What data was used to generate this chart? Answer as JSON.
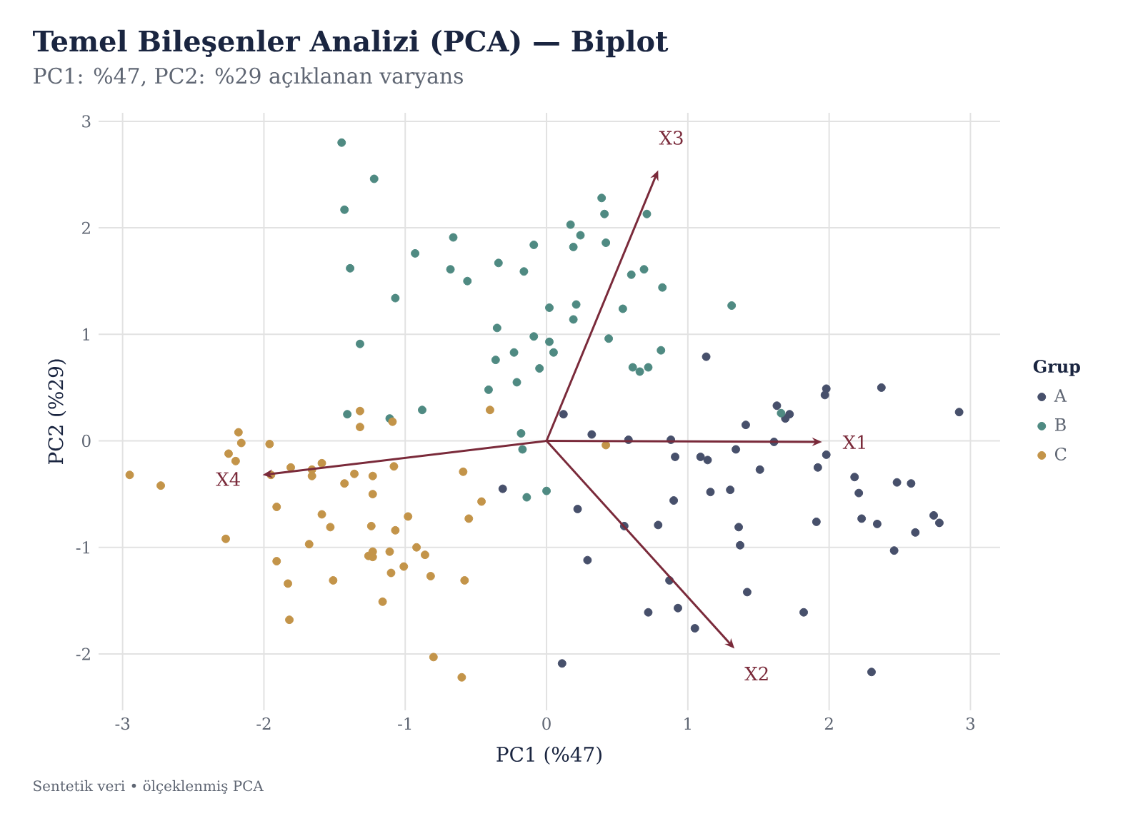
{
  "chart_data": {
    "type": "scatter",
    "title": "Temel Bileşenler Analizi (PCA) — Biplot",
    "subtitle": "PC1: %47, PC2: %29 açıklanan varyans",
    "xlabel": "PC1 (%47)",
    "ylabel": "PC2 (%29)",
    "legend_title": "Grup",
    "legend": "right",
    "grid": true,
    "xlim": [
      -3.17,
      3.21
    ],
    "ylim": [
      -2.53,
      3.08
    ],
    "xticks": [
      -3,
      -2,
      -1,
      0,
      1,
      2,
      3
    ],
    "yticks": [
      -2,
      -1,
      0,
      1,
      2,
      3
    ],
    "annotations": [
      "Sentetik veri • ölçeklenmiş PCA",
      "X1",
      "X2",
      "X3",
      "X4"
    ],
    "series": [
      {
        "name": "A",
        "color": "#47506b",
        "x": [
          2.92,
          2.37,
          1.98,
          1.97,
          1.13,
          1.63,
          1.72,
          1.69,
          1.41,
          0.12,
          0.32,
          0.58,
          0.88,
          1.61,
          1.98,
          0.91,
          1.09,
          1.14,
          1.34,
          1.51,
          1.92,
          2.18,
          2.21,
          2.48,
          2.58,
          1.16,
          1.3,
          0.9,
          -0.31,
          0.22,
          1.91,
          2.23,
          2.34,
          2.74,
          2.78,
          2.61,
          2.46,
          0.55,
          0.79,
          1.36,
          1.37,
          0.29,
          0.87,
          1.42,
          0.93,
          0.72,
          1.82,
          1.05,
          0.11,
          2.3
        ],
        "values": [
          0.27,
          0.5,
          0.49,
          0.43,
          0.79,
          0.33,
          0.25,
          0.21,
          0.15,
          0.25,
          0.06,
          0.01,
          0.01,
          -0.01,
          -0.13,
          -0.15,
          -0.15,
          -0.18,
          -0.08,
          -0.27,
          -0.25,
          -0.34,
          -0.49,
          -0.39,
          -0.4,
          -0.48,
          -0.46,
          -0.56,
          -0.45,
          -0.64,
          -0.76,
          -0.73,
          -0.78,
          -0.7,
          -0.77,
          -0.86,
          -1.03,
          -0.8,
          -0.79,
          -0.81,
          -0.98,
          -1.12,
          -1.31,
          -1.42,
          -1.57,
          -1.61,
          -1.61,
          -1.76,
          -2.09,
          -2.17
        ]
      },
      {
        "name": "B",
        "color": "#4f8a82",
        "x": [
          -1.45,
          -1.22,
          -1.43,
          0.39,
          0.41,
          0.71,
          0.17,
          0.24,
          -0.66,
          -0.09,
          0.19,
          0.42,
          -0.93,
          -0.34,
          -1.39,
          -0.68,
          -0.16,
          -0.56,
          0.6,
          0.69,
          0.82,
          -1.07,
          0.02,
          0.21,
          0.54,
          1.31,
          0.19,
          -0.35,
          -0.09,
          0.02,
          0.44,
          -1.32,
          -0.23,
          0.05,
          0.81,
          -0.36,
          -0.05,
          0.61,
          0.66,
          0.72,
          -0.21,
          -0.41,
          1.66,
          -1.41,
          -1.11,
          -0.88,
          -0.18,
          -0.17,
          0.0,
          -0.14
        ],
        "values": [
          2.8,
          2.46,
          2.17,
          2.28,
          2.13,
          2.13,
          2.03,
          1.93,
          1.91,
          1.84,
          1.82,
          1.86,
          1.76,
          1.67,
          1.62,
          1.61,
          1.59,
          1.5,
          1.56,
          1.61,
          1.44,
          1.34,
          1.25,
          1.28,
          1.24,
          1.27,
          1.14,
          1.06,
          0.98,
          0.93,
          0.96,
          0.91,
          0.83,
          0.83,
          0.85,
          0.76,
          0.68,
          0.69,
          0.65,
          0.69,
          0.55,
          0.48,
          0.26,
          0.25,
          0.21,
          0.29,
          0.07,
          -0.08,
          -0.47,
          -0.53
        ]
      },
      {
        "name": "C",
        "color": "#c39449",
        "x": [
          -0.4,
          -1.32,
          -1.32,
          -1.09,
          -2.18,
          -2.16,
          -1.96,
          -2.25,
          -2.2,
          -1.59,
          -1.81,
          -1.66,
          -1.66,
          -1.95,
          -1.36,
          -1.23,
          -1.08,
          -0.59,
          -1.43,
          -1.23,
          0.42,
          -2.95,
          -2.73,
          -1.91,
          -1.59,
          -1.53,
          -0.98,
          -1.07,
          -1.24,
          -0.55,
          -0.46,
          -2.27,
          -1.68,
          -0.92,
          -0.86,
          -1.23,
          -1.11,
          -1.26,
          -1.23,
          -1.91,
          -1.01,
          -1.83,
          -1.1,
          -0.82,
          -1.51,
          -0.58,
          -1.16,
          -1.82,
          -0.8,
          -0.6
        ],
        "values": [
          0.29,
          0.28,
          0.13,
          0.18,
          0.08,
          -0.02,
          -0.03,
          -0.12,
          -0.19,
          -0.21,
          -0.25,
          -0.27,
          -0.33,
          -0.32,
          -0.31,
          -0.33,
          -0.24,
          -0.29,
          -0.4,
          -0.5,
          -0.04,
          -0.32,
          -0.42,
          -0.62,
          -0.69,
          -0.81,
          -0.71,
          -0.84,
          -0.8,
          -0.73,
          -0.57,
          -0.92,
          -0.97,
          -1.0,
          -1.07,
          -1.04,
          -1.04,
          -1.08,
          -1.09,
          -1.13,
          -1.18,
          -1.34,
          -1.24,
          -1.27,
          -1.31,
          -1.31,
          -1.51,
          -1.68,
          -2.03,
          -2.22
        ]
      }
    ]
  }
}
